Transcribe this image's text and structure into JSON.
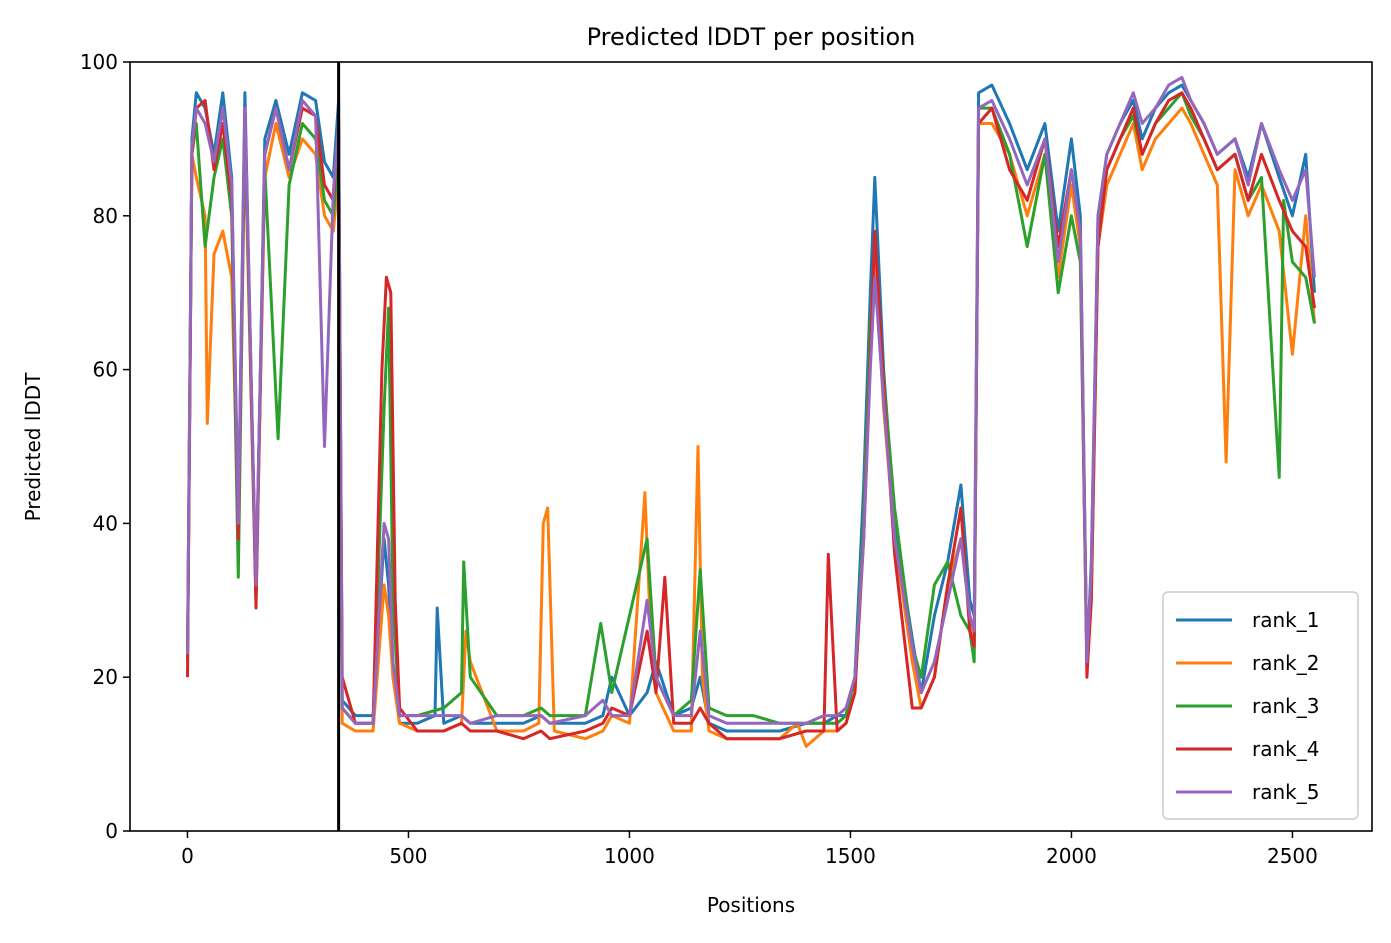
{
  "chart_data": {
    "type": "line",
    "title": "Predicted lDDT per position",
    "xlabel": "Positions",
    "ylabel": "Predicted lDDT",
    "xlim": [
      -130,
      2680
    ],
    "ylim": [
      0,
      100
    ],
    "xticks": [
      "0",
      "500",
      "1000",
      "1500",
      "2000",
      "2500"
    ],
    "xtick_values": [
      0,
      500,
      1000,
      1500,
      2000,
      2500
    ],
    "yticks": [
      "0",
      "20",
      "40",
      "60",
      "80",
      "100"
    ],
    "ytick_values": [
      0,
      20,
      40,
      60,
      80,
      100
    ],
    "grid": false,
    "legend_position": "lower right",
    "vertical_line_x": 342,
    "vertical_line_color": "#000000",
    "series": [
      {
        "name": "rank_1",
        "color": "#1f77b4",
        "x": [
          0,
          10,
          20,
          40,
          60,
          80,
          100,
          115,
          130,
          155,
          175,
          200,
          230,
          260,
          290,
          310,
          330,
          342,
          350,
          380,
          420,
          445,
          455,
          465,
          480,
          520,
          560,
          565,
          580,
          620,
          640,
          700,
          760,
          800,
          820,
          900,
          940,
          960,
          1000,
          1040,
          1060,
          1100,
          1140,
          1160,
          1180,
          1220,
          1280,
          1340,
          1400,
          1440,
          1470,
          1490,
          1510,
          1530,
          1545,
          1555,
          1575,
          1600,
          1640,
          1660,
          1690,
          1720,
          1750,
          1770,
          1780,
          1790,
          1820,
          1860,
          1900,
          1940,
          1970,
          2000,
          2020,
          2035,
          2045,
          2060,
          2080,
          2110,
          2140,
          2160,
          2190,
          2220,
          2250,
          2270,
          2300,
          2330,
          2370,
          2400,
          2430,
          2470,
          2500,
          2530,
          2550
        ],
        "values": [
          22,
          90,
          96,
          94,
          88,
          96,
          85,
          40,
          96,
          30,
          90,
          95,
          88,
          96,
          95,
          87,
          85,
          95,
          17,
          15,
          15,
          38,
          32,
          20,
          14,
          14,
          15,
          29,
          14,
          15,
          14,
          14,
          14,
          15,
          14,
          14,
          15,
          20,
          15,
          18,
          22,
          15,
          16,
          20,
          14,
          13,
          13,
          13,
          14,
          14,
          15,
          15,
          20,
          45,
          70,
          85,
          60,
          40,
          25,
          18,
          28,
          35,
          45,
          30,
          28,
          96,
          97,
          92,
          86,
          92,
          78,
          90,
          80,
          22,
          35,
          80,
          88,
          92,
          95,
          90,
          94,
          96,
          97,
          95,
          92,
          88,
          90,
          85,
          92,
          85,
          80,
          88,
          70
        ]
      },
      {
        "name": "rank_2",
        "color": "#ff7f0e",
        "x": [
          0,
          10,
          20,
          40,
          45,
          60,
          80,
          100,
          115,
          130,
          155,
          175,
          200,
          230,
          260,
          290,
          310,
          330,
          342,
          350,
          380,
          420,
          445,
          455,
          465,
          480,
          520,
          560,
          580,
          620,
          630,
          640,
          700,
          760,
          795,
          805,
          815,
          830,
          900,
          940,
          960,
          1000,
          1035,
          1045,
          1060,
          1100,
          1140,
          1155,
          1165,
          1180,
          1220,
          1280,
          1340,
          1380,
          1400,
          1440,
          1470,
          1490,
          1510,
          1530,
          1545,
          1555,
          1575,
          1600,
          1640,
          1660,
          1690,
          1720,
          1750,
          1770,
          1780,
          1790,
          1820,
          1860,
          1900,
          1940,
          1970,
          2000,
          2020,
          2035,
          2045,
          2060,
          2080,
          2110,
          2140,
          2160,
          2190,
          2220,
          2250,
          2270,
          2300,
          2330,
          2350,
          2370,
          2400,
          2430,
          2470,
          2500,
          2530,
          2550
        ],
        "values": [
          22,
          88,
          85,
          80,
          53,
          75,
          78,
          72,
          40,
          90,
          30,
          85,
          92,
          85,
          90,
          88,
          80,
          78,
          85,
          14,
          13,
          13,
          32,
          28,
          20,
          14,
          13,
          13,
          13,
          14,
          26,
          22,
          13,
          13,
          14,
          40,
          42,
          13,
          12,
          13,
          15,
          14,
          44,
          30,
          18,
          13,
          13,
          50,
          20,
          13,
          12,
          12,
          12,
          14,
          11,
          13,
          13,
          14,
          18,
          40,
          65,
          75,
          55,
          38,
          22,
          16,
          20,
          32,
          38,
          28,
          25,
          92,
          92,
          88,
          80,
          88,
          72,
          84,
          76,
          22,
          30,
          76,
          84,
          88,
          92,
          86,
          90,
          92,
          94,
          92,
          88,
          84,
          48,
          86,
          80,
          84,
          78,
          62,
          80,
          66
        ]
      },
      {
        "name": "rank_3",
        "color": "#2ca02c",
        "x": [
          0,
          10,
          20,
          40,
          60,
          80,
          100,
          115,
          130,
          155,
          175,
          205,
          230,
          260,
          290,
          310,
          330,
          342,
          350,
          380,
          420,
          445,
          455,
          465,
          480,
          520,
          580,
          620,
          625,
          640,
          700,
          760,
          800,
          820,
          900,
          935,
          960,
          1000,
          1040,
          1060,
          1100,
          1140,
          1160,
          1180,
          1220,
          1280,
          1340,
          1400,
          1440,
          1470,
          1490,
          1510,
          1530,
          1545,
          1555,
          1575,
          1600,
          1640,
          1660,
          1690,
          1720,
          1750,
          1770,
          1780,
          1790,
          1820,
          1860,
          1900,
          1940,
          1970,
          2000,
          2020,
          2035,
          2045,
          2060,
          2080,
          2110,
          2140,
          2160,
          2190,
          2220,
          2250,
          2270,
          2300,
          2330,
          2370,
          2400,
          2430,
          2470,
          2480,
          2500,
          2530,
          2550
        ],
        "values": [
          22,
          88,
          92,
          76,
          85,
          90,
          80,
          33,
          92,
          32,
          86,
          51,
          84,
          92,
          90,
          82,
          80,
          88,
          16,
          14,
          14,
          55,
          68,
          30,
          15,
          15,
          16,
          18,
          35,
          20,
          15,
          15,
          16,
          15,
          15,
          27,
          18,
          28,
          38,
          20,
          15,
          17,
          34,
          16,
          15,
          15,
          14,
          14,
          14,
          14,
          15,
          20,
          40,
          66,
          72,
          59,
          42,
          24,
          20,
          32,
          35,
          28,
          26,
          22,
          94,
          94,
          88,
          76,
          88,
          70,
          80,
          74,
          22,
          32,
          78,
          86,
          90,
          93,
          88,
          92,
          94,
          96,
          93,
          90,
          86,
          88,
          82,
          85,
          46,
          82,
          74,
          72,
          66
        ]
      },
      {
        "name": "rank_4",
        "color": "#d62728",
        "x": [
          0,
          10,
          20,
          40,
          60,
          80,
          100,
          115,
          130,
          155,
          175,
          200,
          230,
          260,
          290,
          310,
          330,
          342,
          350,
          380,
          420,
          440,
          450,
          460,
          470,
          480,
          520,
          580,
          620,
          640,
          700,
          760,
          800,
          820,
          900,
          940,
          960,
          1000,
          1040,
          1060,
          1080,
          1100,
          1140,
          1160,
          1180,
          1220,
          1280,
          1340,
          1400,
          1440,
          1450,
          1470,
          1490,
          1510,
          1530,
          1545,
          1555,
          1575,
          1600,
          1640,
          1660,
          1690,
          1720,
          1750,
          1770,
          1780,
          1790,
          1820,
          1860,
          1900,
          1940,
          1970,
          2000,
          2020,
          2035,
          2045,
          2060,
          2080,
          2110,
          2140,
          2160,
          2190,
          2220,
          2250,
          2270,
          2300,
          2330,
          2370,
          2400,
          2430,
          2470,
          2500,
          2530,
          2550
        ],
        "values": [
          20,
          88,
          94,
          95,
          86,
          92,
          82,
          38,
          94,
          29,
          88,
          94,
          86,
          94,
          93,
          84,
          82,
          92,
          20,
          14,
          14,
          60,
          72,
          70,
          30,
          16,
          13,
          13,
          14,
          13,
          13,
          12,
          13,
          12,
          13,
          14,
          16,
          15,
          26,
          18,
          33,
          14,
          14,
          16,
          14,
          12,
          12,
          12,
          13,
          13,
          36,
          13,
          14,
          18,
          38,
          62,
          78,
          58,
          36,
          16,
          16,
          20,
          32,
          42,
          26,
          24,
          92,
          94,
          86,
          82,
          90,
          76,
          86,
          78,
          20,
          30,
          76,
          86,
          90,
          94,
          88,
          92,
          95,
          96,
          94,
          90,
          86,
          88,
          82,
          88,
          82,
          78,
          76,
          68
        ]
      },
      {
        "name": "rank_5",
        "color": "#9467bd",
        "x": [
          0,
          10,
          20,
          40,
          60,
          80,
          100,
          115,
          130,
          155,
          175,
          200,
          230,
          260,
          290,
          310,
          330,
          342,
          350,
          380,
          420,
          445,
          455,
          465,
          480,
          520,
          580,
          620,
          640,
          700,
          760,
          800,
          820,
          900,
          940,
          960,
          1000,
          1040,
          1060,
          1100,
          1140,
          1160,
          1180,
          1220,
          1280,
          1340,
          1400,
          1440,
          1470,
          1490,
          1510,
          1530,
          1545,
          1555,
          1575,
          1600,
          1640,
          1660,
          1690,
          1720,
          1750,
          1770,
          1780,
          1790,
          1820,
          1860,
          1900,
          1940,
          1970,
          2000,
          2020,
          2035,
          2045,
          2060,
          2080,
          2110,
          2140,
          2160,
          2190,
          2220,
          2250,
          2270,
          2300,
          2330,
          2370,
          2400,
          2430,
          2470,
          2500,
          2530,
          2550
        ],
        "values": [
          23,
          89,
          94,
          92,
          87,
          94,
          84,
          40,
          94,
          32,
          88,
          94,
          86,
          95,
          93,
          50,
          83,
          92,
          16,
          14,
          14,
          40,
          38,
          22,
          15,
          15,
          15,
          15,
          14,
          15,
          15,
          15,
          14,
          15,
          17,
          15,
          15,
          30,
          20,
          15,
          15,
          26,
          15,
          14,
          14,
          14,
          14,
          15,
          15,
          16,
          20,
          38,
          60,
          72,
          56,
          38,
          24,
          18,
          22,
          30,
          38,
          28,
          26,
          94,
          95,
          90,
          84,
          90,
          74,
          86,
          78,
          22,
          34,
          80,
          88,
          92,
          96,
          92,
          94,
          97,
          98,
          95,
          92,
          88,
          90,
          84,
          92,
          86,
          82,
          86,
          72
        ]
      }
    ]
  }
}
